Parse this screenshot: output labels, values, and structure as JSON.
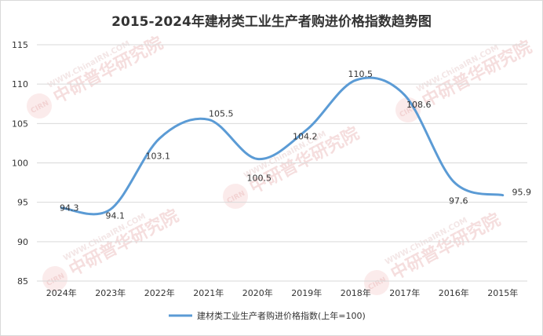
{
  "chart_data": {
    "type": "line",
    "title": "2015-2024年建材类工业生产者购进价格指数趋势图",
    "categories": [
      "2024年",
      "2023年",
      "2022年",
      "2021年",
      "2020年",
      "2019年",
      "2018年",
      "2017年",
      "2016年",
      "2015年"
    ],
    "series": [
      {
        "name": "建材类工业生产者购进价格指数(上年=100)",
        "values": [
          94.3,
          94.1,
          103.1,
          105.5,
          100.5,
          104.2,
          110.5,
          108.6,
          97.6,
          95.9
        ],
        "color": "#5b9bd5"
      }
    ],
    "data_labels": [
      "94.3",
      "94.1",
      "103.1",
      "105.5",
      "100.5",
      "104.2",
      "110.5",
      "108.6",
      "97.6",
      "95.9"
    ],
    "y_ticks": [
      "85",
      "90",
      "95",
      "100",
      "105",
      "110",
      "115"
    ],
    "ylim": [
      85,
      115
    ],
    "grid": true,
    "legend_position": "bottom"
  },
  "watermark": {
    "brand_text": "中研普华研究院",
    "logo_text": "CIRN",
    "url_text": "WWW.ChinaIRN.COM"
  }
}
